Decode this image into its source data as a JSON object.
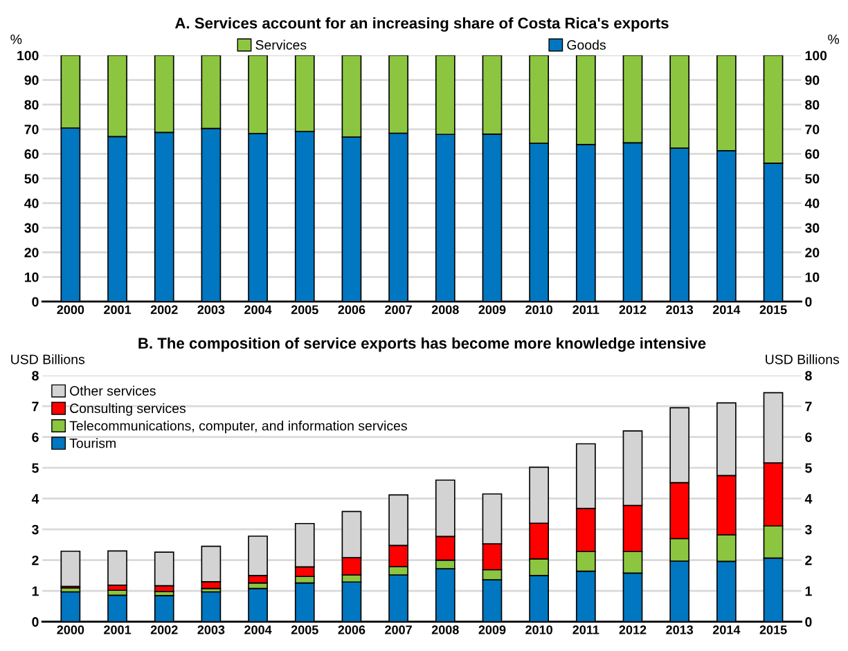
{
  "chart_data": [
    {
      "type": "bar",
      "title": "A. Services account for an increasing share of Costa Rica's exports",
      "ylabel": "%",
      "y2label": "%",
      "categories": [
        "2000",
        "2001",
        "2002",
        "2003",
        "2004",
        "2005",
        "2006",
        "2007",
        "2008",
        "2009",
        "2010",
        "2011",
        "2012",
        "2013",
        "2014",
        "2015"
      ],
      "stacked": true,
      "series": [
        {
          "name": "Goods",
          "color": "#0077c0",
          "values": [
            70.5,
            67,
            68.7,
            70.3,
            68.2,
            69.1,
            66.8,
            68.4,
            67.9,
            68,
            64.3,
            63.8,
            64.5,
            62.3,
            61.3,
            56.2
          ]
        },
        {
          "name": "Services",
          "color": "#8cc640",
          "values": [
            29.5,
            33,
            31.3,
            29.7,
            31.8,
            30.9,
            33.2,
            31.6,
            32.1,
            32,
            35.7,
            36.2,
            35.5,
            37.7,
            38.7,
            43.8
          ]
        }
      ],
      "ylim": [
        0,
        100
      ],
      "yticks": [
        0,
        10,
        20,
        30,
        40,
        50,
        60,
        70,
        80,
        90,
        100
      ],
      "y2lim": [
        0,
        100
      ],
      "y2ticks": [
        0,
        10,
        20,
        30,
        40,
        50,
        60,
        70,
        80,
        90,
        100
      ],
      "grid": "y",
      "legend": "top"
    },
    {
      "type": "bar",
      "title": "B. The composition of service exports has become more knowledge intensive",
      "ylabel": "USD Billions",
      "y2label": "USD Billions",
      "categories": [
        "2000",
        "2001",
        "2002",
        "2003",
        "2004",
        "2005",
        "2006",
        "2007",
        "2008",
        "2009",
        "2010",
        "2011",
        "2012",
        "2013",
        "2014",
        "2015"
      ],
      "stacked": true,
      "series": [
        {
          "name": "Tourism",
          "color": "#0077c0",
          "values": [
            0.97,
            0.86,
            0.85,
            0.97,
            1.08,
            1.26,
            1.29,
            1.52,
            1.72,
            1.36,
            1.5,
            1.64,
            1.58,
            1.97,
            1.96,
            2.07
          ]
        },
        {
          "name": "Telecommunications, computer, and information services",
          "color": "#8cc640",
          "values": [
            0.13,
            0.16,
            0.13,
            0.11,
            0.18,
            0.21,
            0.23,
            0.27,
            0.28,
            0.33,
            0.54,
            0.64,
            0.7,
            0.73,
            0.86,
            1.04
          ]
        },
        {
          "name": "Consulting services",
          "color": "#ff0000",
          "values": [
            0.05,
            0.17,
            0.19,
            0.22,
            0.24,
            0.31,
            0.56,
            0.69,
            0.77,
            0.84,
            1.16,
            1.4,
            1.5,
            1.82,
            1.93,
            2.05
          ]
        },
        {
          "name": "Other services",
          "color": "#d3d3d3",
          "values": [
            1.14,
            1.11,
            1.09,
            1.15,
            1.28,
            1.41,
            1.5,
            1.64,
            1.83,
            1.62,
            1.82,
            2.1,
            2.42,
            2.43,
            2.36,
            2.28
          ]
        }
      ],
      "ylim": [
        0,
        8
      ],
      "yticks": [
        0,
        1,
        2,
        3,
        4,
        5,
        6,
        7,
        8
      ],
      "y2lim": [
        0,
        8
      ],
      "y2ticks": [
        0,
        1,
        2,
        3,
        4,
        5,
        6,
        7,
        8
      ],
      "grid": "y",
      "legend": "top left"
    }
  ]
}
